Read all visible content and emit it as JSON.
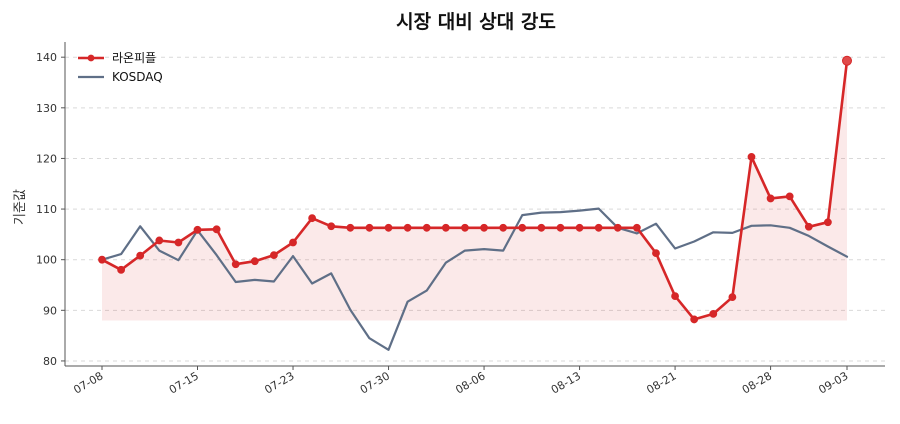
{
  "chart_data": {
    "type": "line",
    "title": "시장 대비 상대 강도",
    "xlabel": "",
    "ylabel": "기준값",
    "ylim": [
      79,
      143
    ],
    "yticks": [
      80,
      90,
      100,
      110,
      120,
      130,
      140
    ],
    "grid": true,
    "legend_position": "top-left",
    "xtick_labels": [
      "07-08",
      "07-15",
      "07-23",
      "07-30",
      "08-06",
      "08-13",
      "08-21",
      "08-28",
      "09-03"
    ],
    "xtick_index": [
      0,
      5,
      10,
      15,
      20,
      25,
      30,
      35,
      39
    ],
    "x": [
      "07-08",
      "07-09",
      "07-10",
      "07-11",
      "07-12",
      "07-15",
      "07-16",
      "07-17",
      "07-18",
      "07-19",
      "07-23",
      "07-24",
      "07-25",
      "07-26",
      "07-29",
      "07-30",
      "07-31",
      "08-01",
      "08-02",
      "08-05",
      "08-06",
      "08-07",
      "08-08",
      "08-09",
      "08-12",
      "08-13",
      "08-14",
      "08-16",
      "08-19",
      "08-20",
      "08-21",
      "08-22",
      "08-23",
      "08-26",
      "08-27",
      "08-28",
      "08-29",
      "08-30",
      "09-02",
      "09-03"
    ],
    "fill_baseline": 88,
    "series": [
      {
        "name": "라온피플",
        "color": "#d62728",
        "marker": true,
        "fill": true,
        "values": [
          100,
          98,
          100.8,
          103.8,
          103.4,
          105.9,
          106,
          99.1,
          99.7,
          100.9,
          103.4,
          108.2,
          106.6,
          106.3,
          106.3,
          106.3,
          106.3,
          106.3,
          106.3,
          106.3,
          106.3,
          106.3,
          106.3,
          106.3,
          106.3,
          106.3,
          106.3,
          106.3,
          106.3,
          101.3,
          92.8,
          88.2,
          89.3,
          92.6,
          120.3,
          112.1,
          112.5,
          106.5,
          107.4,
          139.3
        ]
      },
      {
        "name": "KOSDAQ",
        "color": "#5f6f87",
        "marker": false,
        "fill": false,
        "values": [
          100,
          101.1,
          106.6,
          101.8,
          99.9,
          105.8,
          100.9,
          95.6,
          96,
          95.7,
          100.7,
          95.3,
          97.3,
          90.1,
          84.5,
          82.2,
          91.7,
          93.9,
          99.4,
          101.8,
          102.1,
          101.8,
          108.8,
          109.3,
          109.4,
          109.7,
          110.1,
          106.3,
          105.2,
          107.1,
          102.2,
          103.6,
          105.4,
          105.3,
          106.7,
          106.8,
          106.3,
          104.7,
          102.6,
          100.6
        ]
      }
    ]
  }
}
